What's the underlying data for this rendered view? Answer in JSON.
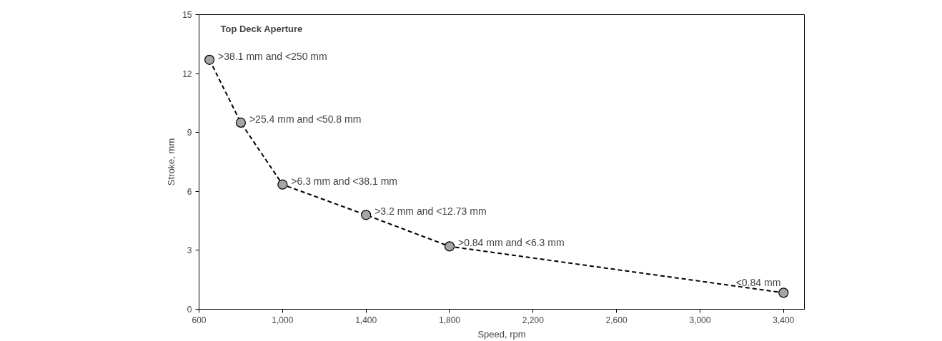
{
  "chart_data": {
    "type": "line",
    "title": "Top Deck Aperture",
    "xlabel": "Speed, rpm",
    "ylabel": "Stroke, mm",
    "x": [
      650,
      800,
      1000,
      1400,
      1800,
      3400
    ],
    "series": [
      {
        "color": "#000000",
        "values": [
          12.7,
          9.5,
          6.35,
          4.8,
          3.2,
          0.84
        ]
      }
    ],
    "marker": "circle",
    "line_style": "dashed",
    "grid": false,
    "xlim": [
      600,
      3500
    ],
    "ylim": [
      0,
      15
    ],
    "xticks": [
      600,
      {
        "value": 1000,
        "label": "1,000"
      },
      {
        "value": 1400,
        "label": "1,400"
      },
      {
        "value": 1800,
        "label": "1,800"
      },
      {
        "value": 2200,
        "label": "2,200"
      },
      {
        "value": 2600,
        "label": "2,600"
      },
      {
        "value": 3000,
        "label": "3,000"
      },
      {
        "value": 3400,
        "label": "3,400"
      }
    ],
    "yticks": [
      0,
      3,
      6,
      9,
      12,
      15
    ],
    "annotations": [
      {
        "text": ">38.1 mm and <250 mm",
        "x": 650,
        "y": 12.7
      },
      {
        "text": ">25.4 mm and <50.8 mm",
        "x": 800,
        "y": 9.5
      },
      {
        "text": ">6.3 mm and <38.1 mm",
        "x": 1000,
        "y": 6.35
      },
      {
        "text": ">3.2  mm and <12.73 mm",
        "x": 1400,
        "y": 4.8
      },
      {
        "text": ">0.84 mm and <6.3 mm",
        "x": 1800,
        "y": 3.2
      },
      {
        "text": "<0.84 mm",
        "x": 3400,
        "y": 0.84
      }
    ]
  }
}
